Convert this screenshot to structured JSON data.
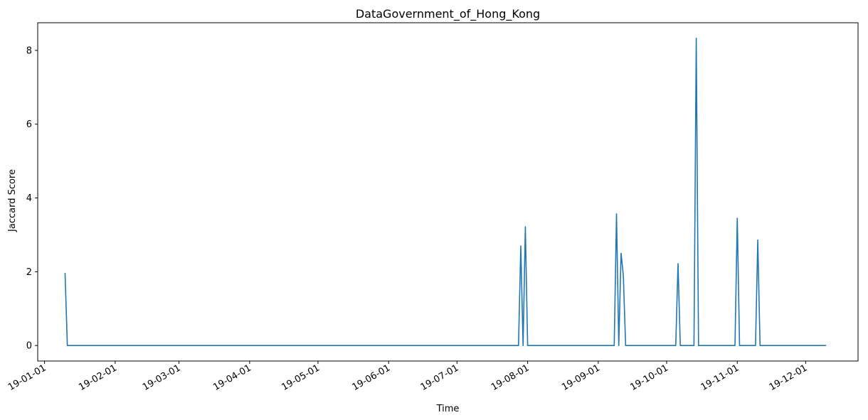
{
  "chart_data": {
    "type": "line",
    "title": "DataGovernment_of_Hong_Kong",
    "xlabel": "Time",
    "ylabel": "Jaccard Score",
    "xlim": [
      "2018-12-29",
      "2019-12-24"
    ],
    "ylim": [
      -0.42,
      8.75
    ],
    "y_ticks": [
      0,
      2,
      4,
      6,
      8
    ],
    "x_ticks": [
      {
        "date": "2019-01-01",
        "label": "19-01-01"
      },
      {
        "date": "2019-02-01",
        "label": "19-02-01"
      },
      {
        "date": "2019-03-01",
        "label": "19-03-01"
      },
      {
        "date": "2019-04-01",
        "label": "19-04-01"
      },
      {
        "date": "2019-05-01",
        "label": "19-05-01"
      },
      {
        "date": "2019-06-01",
        "label": "19-06-01"
      },
      {
        "date": "2019-07-01",
        "label": "19-07-01"
      },
      {
        "date": "2019-08-01",
        "label": "19-08-01"
      },
      {
        "date": "2019-09-01",
        "label": "19-09-01"
      },
      {
        "date": "2019-10-01",
        "label": "19-10-01"
      },
      {
        "date": "2019-11-01",
        "label": "19-11-01"
      },
      {
        "date": "2019-12-01",
        "label": "19-12-01"
      }
    ],
    "grid": false,
    "series": [
      {
        "color": "#1f77b4",
        "points": [
          [
            "2019-01-10",
            1.97
          ],
          [
            "2019-01-11",
            0
          ],
          [
            "2019-07-28",
            0
          ],
          [
            "2019-07-29",
            2.7
          ],
          [
            "2019-07-30",
            0
          ],
          [
            "2019-07-31",
            3.22
          ],
          [
            "2019-08-01",
            0
          ],
          [
            "2019-09-08",
            0
          ],
          [
            "2019-09-09",
            3.57
          ],
          [
            "2019-09-10",
            0
          ],
          [
            "2019-09-11",
            2.5
          ],
          [
            "2019-09-12",
            1.9
          ],
          [
            "2019-09-13",
            0
          ],
          [
            "2019-10-05",
            0
          ],
          [
            "2019-10-06",
            2.22
          ],
          [
            "2019-10-07",
            0
          ],
          [
            "2019-10-13",
            0
          ],
          [
            "2019-10-14",
            8.33
          ],
          [
            "2019-10-15",
            0
          ],
          [
            "2019-10-31",
            0
          ],
          [
            "2019-11-01",
            3.45
          ],
          [
            "2019-11-02",
            0
          ],
          [
            "2019-11-09",
            0
          ],
          [
            "2019-11-10",
            2.86
          ],
          [
            "2019-11-11",
            0
          ],
          [
            "2019-12-10",
            0
          ]
        ]
      }
    ]
  }
}
